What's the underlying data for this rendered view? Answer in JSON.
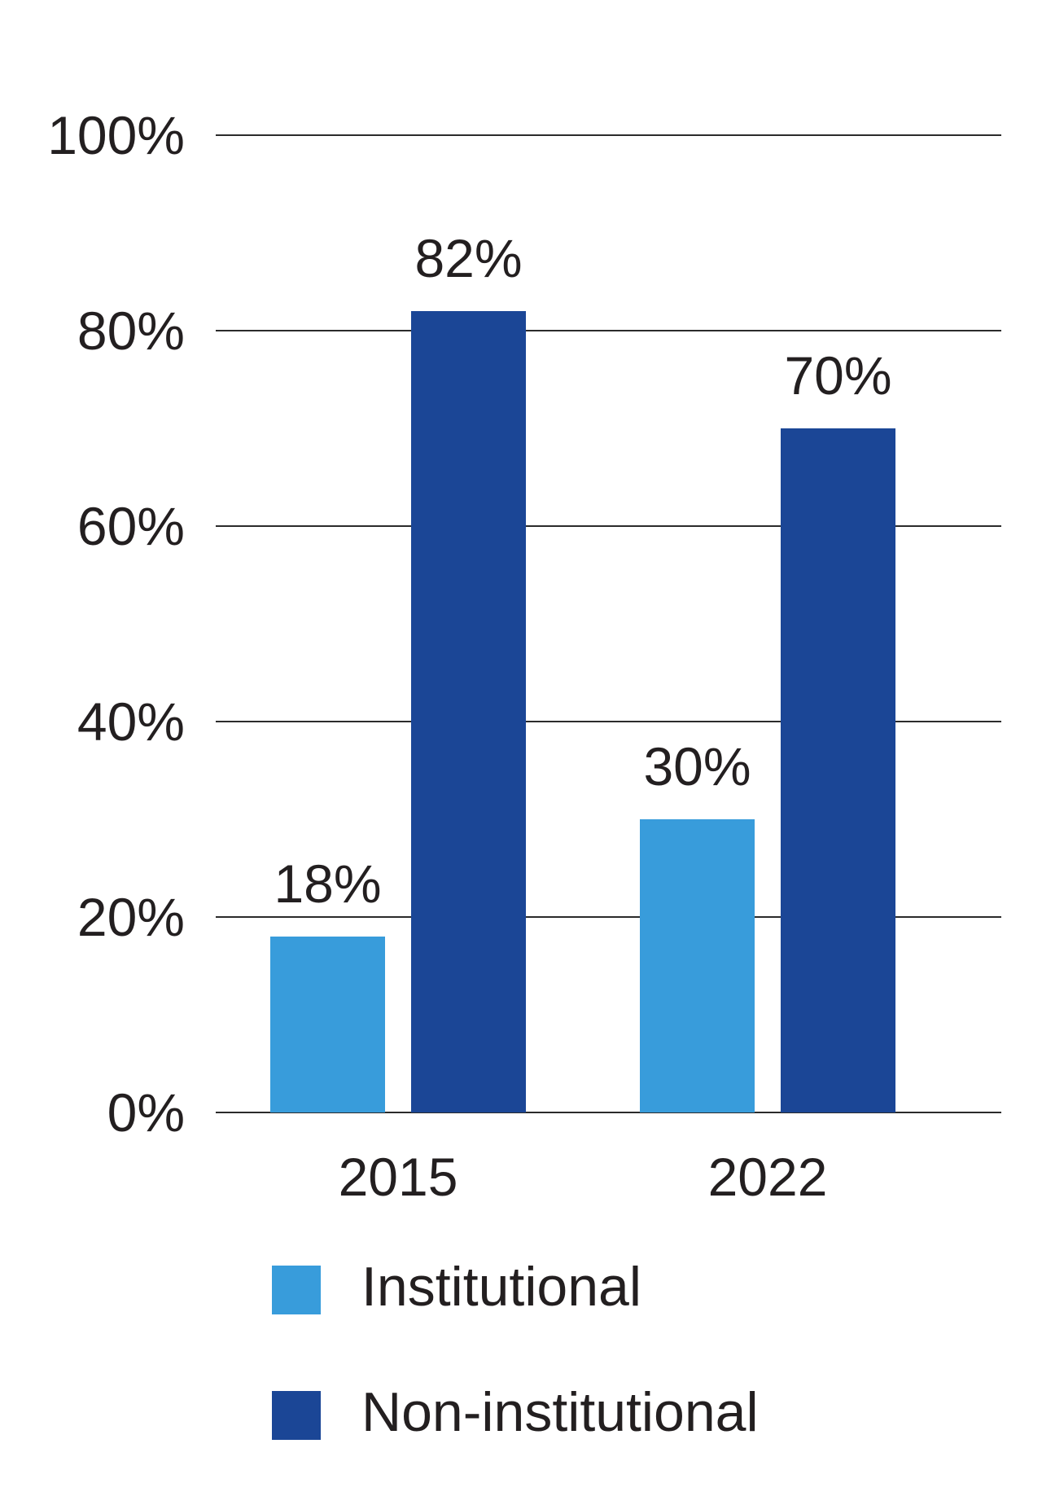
{
  "chart_data": {
    "type": "bar",
    "categories": [
      "2015",
      "2022"
    ],
    "series": [
      {
        "name": "Institutional",
        "values": [
          18,
          30
        ],
        "labels": [
          "18%",
          "30%"
        ],
        "color": "#389cdb"
      },
      {
        "name": "Non-institutional",
        "values": [
          82,
          70
        ],
        "labels": [
          "82%",
          "70%"
        ],
        "color": "#1b4696"
      }
    ],
    "title": "",
    "xlabel": "",
    "ylabel": "",
    "ylim": [
      0,
      100
    ],
    "yticks": [
      0,
      20,
      40,
      60,
      80,
      100
    ],
    "ytick_labels": [
      "0%",
      "20%",
      "40%",
      "60%",
      "80%",
      "100%"
    ],
    "grid": true,
    "legend_position": "bottom"
  }
}
